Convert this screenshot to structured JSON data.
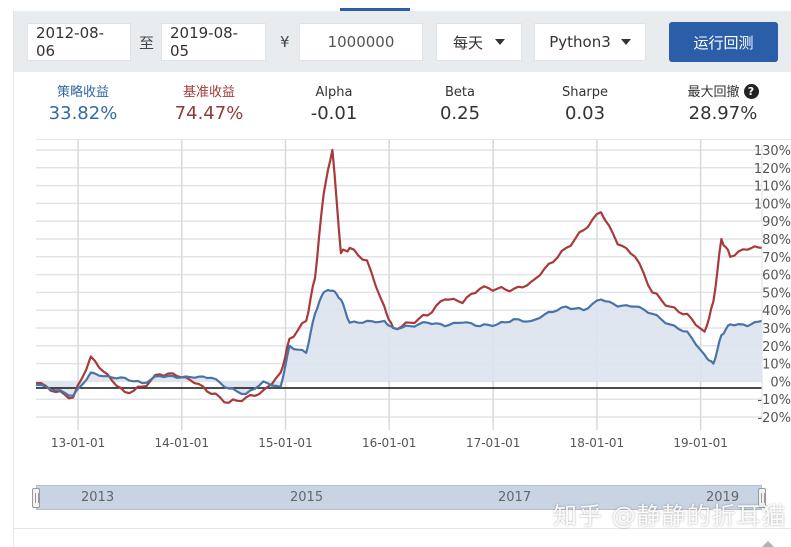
{
  "toolbar": {
    "start_date": "2012-08-06",
    "to_label": "至",
    "end_date": "2019-08-05",
    "currency_symbol": "¥",
    "capital": "1000000",
    "frequency": "每天",
    "language": "Python3",
    "run_button": "运行回测"
  },
  "stats": {
    "strategy_return": {
      "label": "策略收益",
      "value": "33.82%",
      "color": "#2f6aa3"
    },
    "benchmark_return": {
      "label": "基准收益",
      "value": "74.47%",
      "color": "#a33a3a"
    },
    "alpha": {
      "label": "Alpha",
      "value": "-0.01"
    },
    "beta": {
      "label": "Beta",
      "value": "0.25"
    },
    "sharpe": {
      "label": "Sharpe",
      "value": "0.03"
    },
    "max_drawdown": {
      "label": "最大回撤",
      "value": "28.97%",
      "help_icon": "?"
    }
  },
  "navigator": {
    "labels": [
      "2013",
      "2015",
      "2017",
      "2019"
    ]
  },
  "watermark": "知乎 @静静的折耳猫",
  "chart_data": {
    "type": "line",
    "title": "",
    "xlabel": "",
    "ylabel": "",
    "ylim": [
      -20,
      130
    ],
    "y_ticks": [
      "130%",
      "120%",
      "110%",
      "100%",
      "90%",
      "80%",
      "70%",
      "60%",
      "50%",
      "40%",
      "30%",
      "20%",
      "10%",
      "0%",
      "-10%",
      "-20%"
    ],
    "x_ticks": [
      "13-01-01",
      "14-01-01",
      "15-01-01",
      "16-01-01",
      "17-01-01",
      "18-01-01",
      "19-01-01"
    ],
    "grid": true,
    "colors": {
      "strategy": "#4a74a8",
      "benchmark": "#a83a3a",
      "area_fill": "#dbe3ee"
    },
    "x": [
      "2012-08",
      "2012-10",
      "2012-12",
      "2013-02",
      "2013-04",
      "2013-06",
      "2013-08",
      "2013-10",
      "2013-12",
      "2014-02",
      "2014-04",
      "2014-06",
      "2014-08",
      "2014-10",
      "2014-12",
      "2015-01",
      "2015-03",
      "2015-04",
      "2015-05",
      "2015-06",
      "2015-07",
      "2015-08",
      "2015-10",
      "2015-12",
      "2016-01",
      "2016-03",
      "2016-05",
      "2016-07",
      "2016-09",
      "2016-11",
      "2017-01",
      "2017-03",
      "2017-05",
      "2017-07",
      "2017-09",
      "2017-11",
      "2018-01",
      "2018-03",
      "2018-05",
      "2018-07",
      "2018-09",
      "2018-11",
      "2019-01",
      "2019-02",
      "2019-03",
      "2019-04",
      "2019-06",
      "2019-08"
    ],
    "series": [
      {
        "name": "策略收益",
        "values": [
          -2,
          -5,
          -8,
          5,
          3,
          2,
          -1,
          3,
          2,
          2,
          2,
          -4,
          -7,
          0,
          -3,
          20,
          16,
          38,
          50,
          51,
          46,
          33,
          34,
          34,
          30,
          31,
          33,
          31,
          33,
          31,
          32,
          35,
          34,
          39,
          42,
          40,
          46,
          42,
          42,
          38,
          32,
          28,
          15,
          10,
          26,
          32,
          31,
          34
        ]
      },
      {
        "name": "基准收益",
        "values": [
          -1,
          -6,
          -9,
          14,
          4,
          -6,
          -3,
          4,
          3,
          -1,
          -7,
          -12,
          -9,
          -5,
          5,
          24,
          34,
          58,
          105,
          130,
          72,
          75,
          68,
          42,
          30,
          33,
          37,
          46,
          44,
          52,
          52,
          52,
          56,
          66,
          75,
          85,
          95,
          77,
          70,
          50,
          42,
          38,
          28,
          45,
          80,
          70,
          74,
          75
        ]
      }
    ]
  }
}
